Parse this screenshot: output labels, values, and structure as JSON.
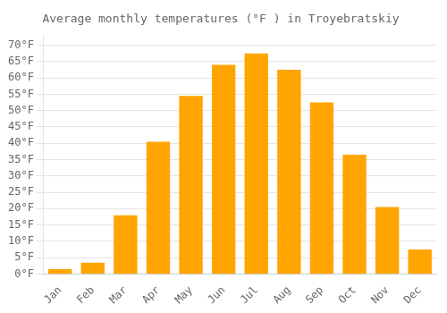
{
  "chart_data": {
    "type": "bar",
    "title": "Average monthly temperatures (°F ) in Troyebratskiy",
    "categories": [
      "Jan",
      "Feb",
      "Mar",
      "Apr",
      "May",
      "Jun",
      "Jul",
      "Aug",
      "Sep",
      "Oct",
      "Nov",
      "Dec"
    ],
    "values": [
      1.5,
      3.5,
      18,
      40.5,
      54.5,
      64,
      67.5,
      62.5,
      52.5,
      36.5,
      20.5,
      7.5
    ],
    "color": "#FFA500",
    "ylim": [
      0,
      73
    ],
    "yticks": [
      {
        "value": 0,
        "label": "0°F"
      },
      {
        "value": 5,
        "label": "5°F"
      },
      {
        "value": 10,
        "label": "10°F"
      },
      {
        "value": 15,
        "label": "15°F"
      },
      {
        "value": 20,
        "label": "20°F"
      },
      {
        "value": 25,
        "label": "25°F"
      },
      {
        "value": 30,
        "label": "30°F"
      },
      {
        "value": 35,
        "label": "35°F"
      },
      {
        "value": 40,
        "label": "40°F"
      },
      {
        "value": 45,
        "label": "45°F"
      },
      {
        "value": 50,
        "label": "50°F"
      },
      {
        "value": 55,
        "label": "55°F"
      },
      {
        "value": 60,
        "label": "60°F"
      },
      {
        "value": 65,
        "label": "65°F"
      },
      {
        "value": 70,
        "label": "70°F"
      }
    ],
    "grid": true
  }
}
